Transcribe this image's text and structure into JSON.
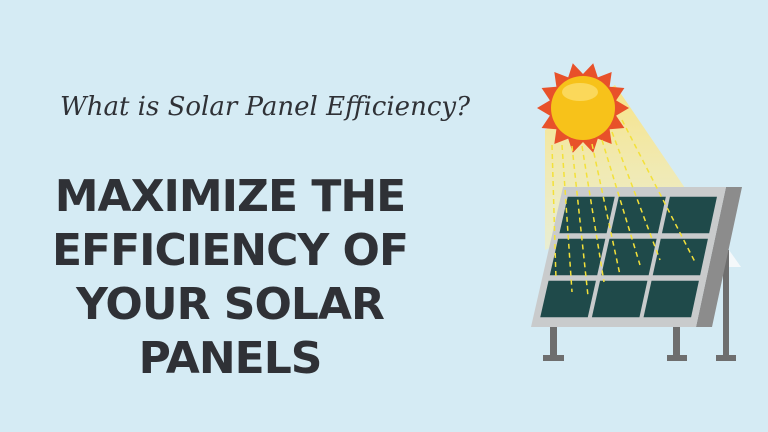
{
  "subtitle": "What is Solar Panel Efficiency?",
  "headline": [
    "MAXIMIZE THE",
    "EFFICIENCY OF",
    "YOUR SOLAR",
    "PANELS"
  ],
  "colors": {
    "background": "#d5ebf4",
    "text": "#2f3136",
    "sun": "#f7c21a",
    "sun_rays": "#e8512a",
    "panel_cell": "#1f4a4a",
    "frame": "#c9c9c9"
  },
  "illustration": {
    "icons": [
      "sun-icon",
      "solar-panel-icon"
    ]
  }
}
